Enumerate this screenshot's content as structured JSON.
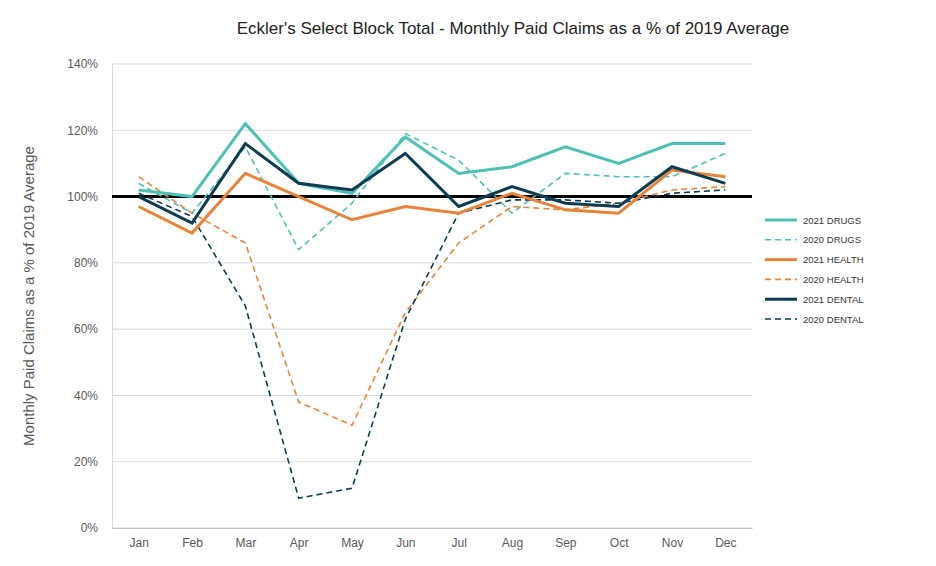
{
  "chart_data": {
    "type": "line",
    "title": "Eckler's Select Block Total - Monthly Paid Claims as a % of 2019 Average",
    "y_label": "Monthly Paid Claims as a % of 2019 Average",
    "categories": [
      "Jan",
      "Feb",
      "Mar",
      "Apr",
      "May",
      "Jun",
      "Jul",
      "Aug",
      "Sep",
      "Oct",
      "Nov",
      "Dec"
    ],
    "series": [
      {
        "name": "2021 DRUGS",
        "color": "#4cc1b4",
        "line_style": "solid",
        "values": [
          102,
          100,
          122,
          104,
          101,
          118,
          107,
          109,
          115,
          110,
          116,
          116
        ]
      },
      {
        "name": "2020 DRUGS",
        "color": "#4cc1b4",
        "line_style": "dashed",
        "values": [
          104,
          95,
          115,
          84,
          98,
          119,
          111,
          95,
          107,
          106,
          106,
          113
        ]
      },
      {
        "name": "2021 HEALTH",
        "color": "#e8843a",
        "line_style": "solid",
        "values": [
          97,
          89,
          107,
          100,
          93,
          97,
          95,
          101,
          96,
          95,
          108,
          106
        ]
      },
      {
        "name": "2020 HEALTH",
        "color": "#e8843a",
        "line_style": "dashed",
        "values": [
          106,
          95,
          86,
          38,
          31,
          65,
          86,
          97,
          96,
          98,
          102,
          103
        ]
      },
      {
        "name": "2021 DENTAL",
        "color": "#0d3b52",
        "line_style": "solid",
        "values": [
          100,
          92,
          116,
          104,
          102,
          113,
          97,
          103,
          98,
          97,
          109,
          104
        ]
      },
      {
        "name": "2020 DENTAL",
        "color": "#0d3b52",
        "line_style": "dashed",
        "values": [
          101,
          94,
          67,
          9,
          12,
          63,
          95,
          99,
          99,
          98,
          101,
          102
        ]
      }
    ],
    "reference_value": 100,
    "ylim": [
      0,
      140
    ],
    "yticks": [
      {
        "value": 0,
        "label": "0%"
      },
      {
        "value": 20,
        "label": "20%"
      },
      {
        "value": 40,
        "label": "40%"
      },
      {
        "value": 60,
        "label": "60%"
      },
      {
        "value": 80,
        "label": "80%"
      },
      {
        "value": 100,
        "label": "100%"
      },
      {
        "value": 120,
        "label": "120%"
      },
      {
        "value": 140,
        "label": "140%"
      }
    ],
    "grid": true,
    "legend": "right"
  }
}
